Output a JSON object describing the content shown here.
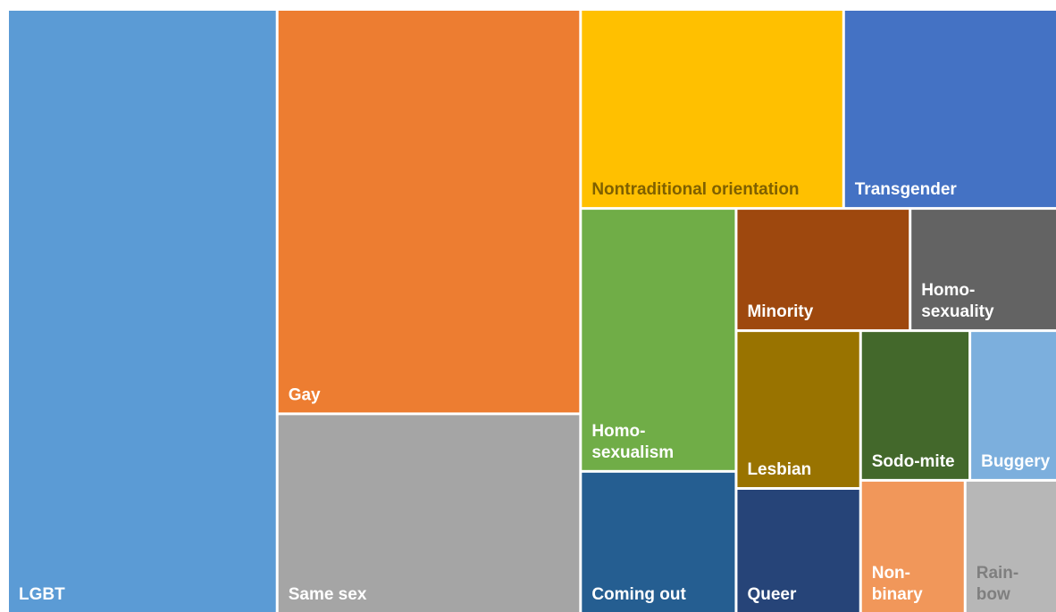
{
  "chart_data": {
    "type": "treemap",
    "categories": [
      "LGBT",
      "Gay",
      "Same sex",
      "Nontraditional orientation",
      "Transgender",
      "Homo-sexualism",
      "Coming out",
      "Minority",
      "Homo-sexuality",
      "Lesbian",
      "Queer",
      "Sodo-mite",
      "Buggery",
      "Non-binary",
      "Rain-bow"
    ],
    "values": [
      199,
      150,
      74,
      64,
      52,
      50,
      27,
      26,
      22,
      24,
      19,
      20,
      16,
      17,
      15
    ],
    "colors": [
      "#5b9bd5",
      "#ed7d31",
      "#a5a5a5",
      "#ffc000",
      "#4472c4",
      "#70ad47",
      "#255e91",
      "#9e480e",
      "#636363",
      "#997300",
      "#264478",
      "#43682b",
      "#7cafdd",
      "#f1975a",
      "#b7b7b7"
    ],
    "label_colors": [
      "#ffffff",
      "#ffffff",
      "#ffffff",
      "#7f6000",
      "#ffffff",
      "#ffffff",
      "#ffffff",
      "#ffffff",
      "#ffffff",
      "#ffffff",
      "#ffffff",
      "#ffffff",
      "#ffffff",
      "#ffffff",
      "#7f7f7f"
    ]
  }
}
